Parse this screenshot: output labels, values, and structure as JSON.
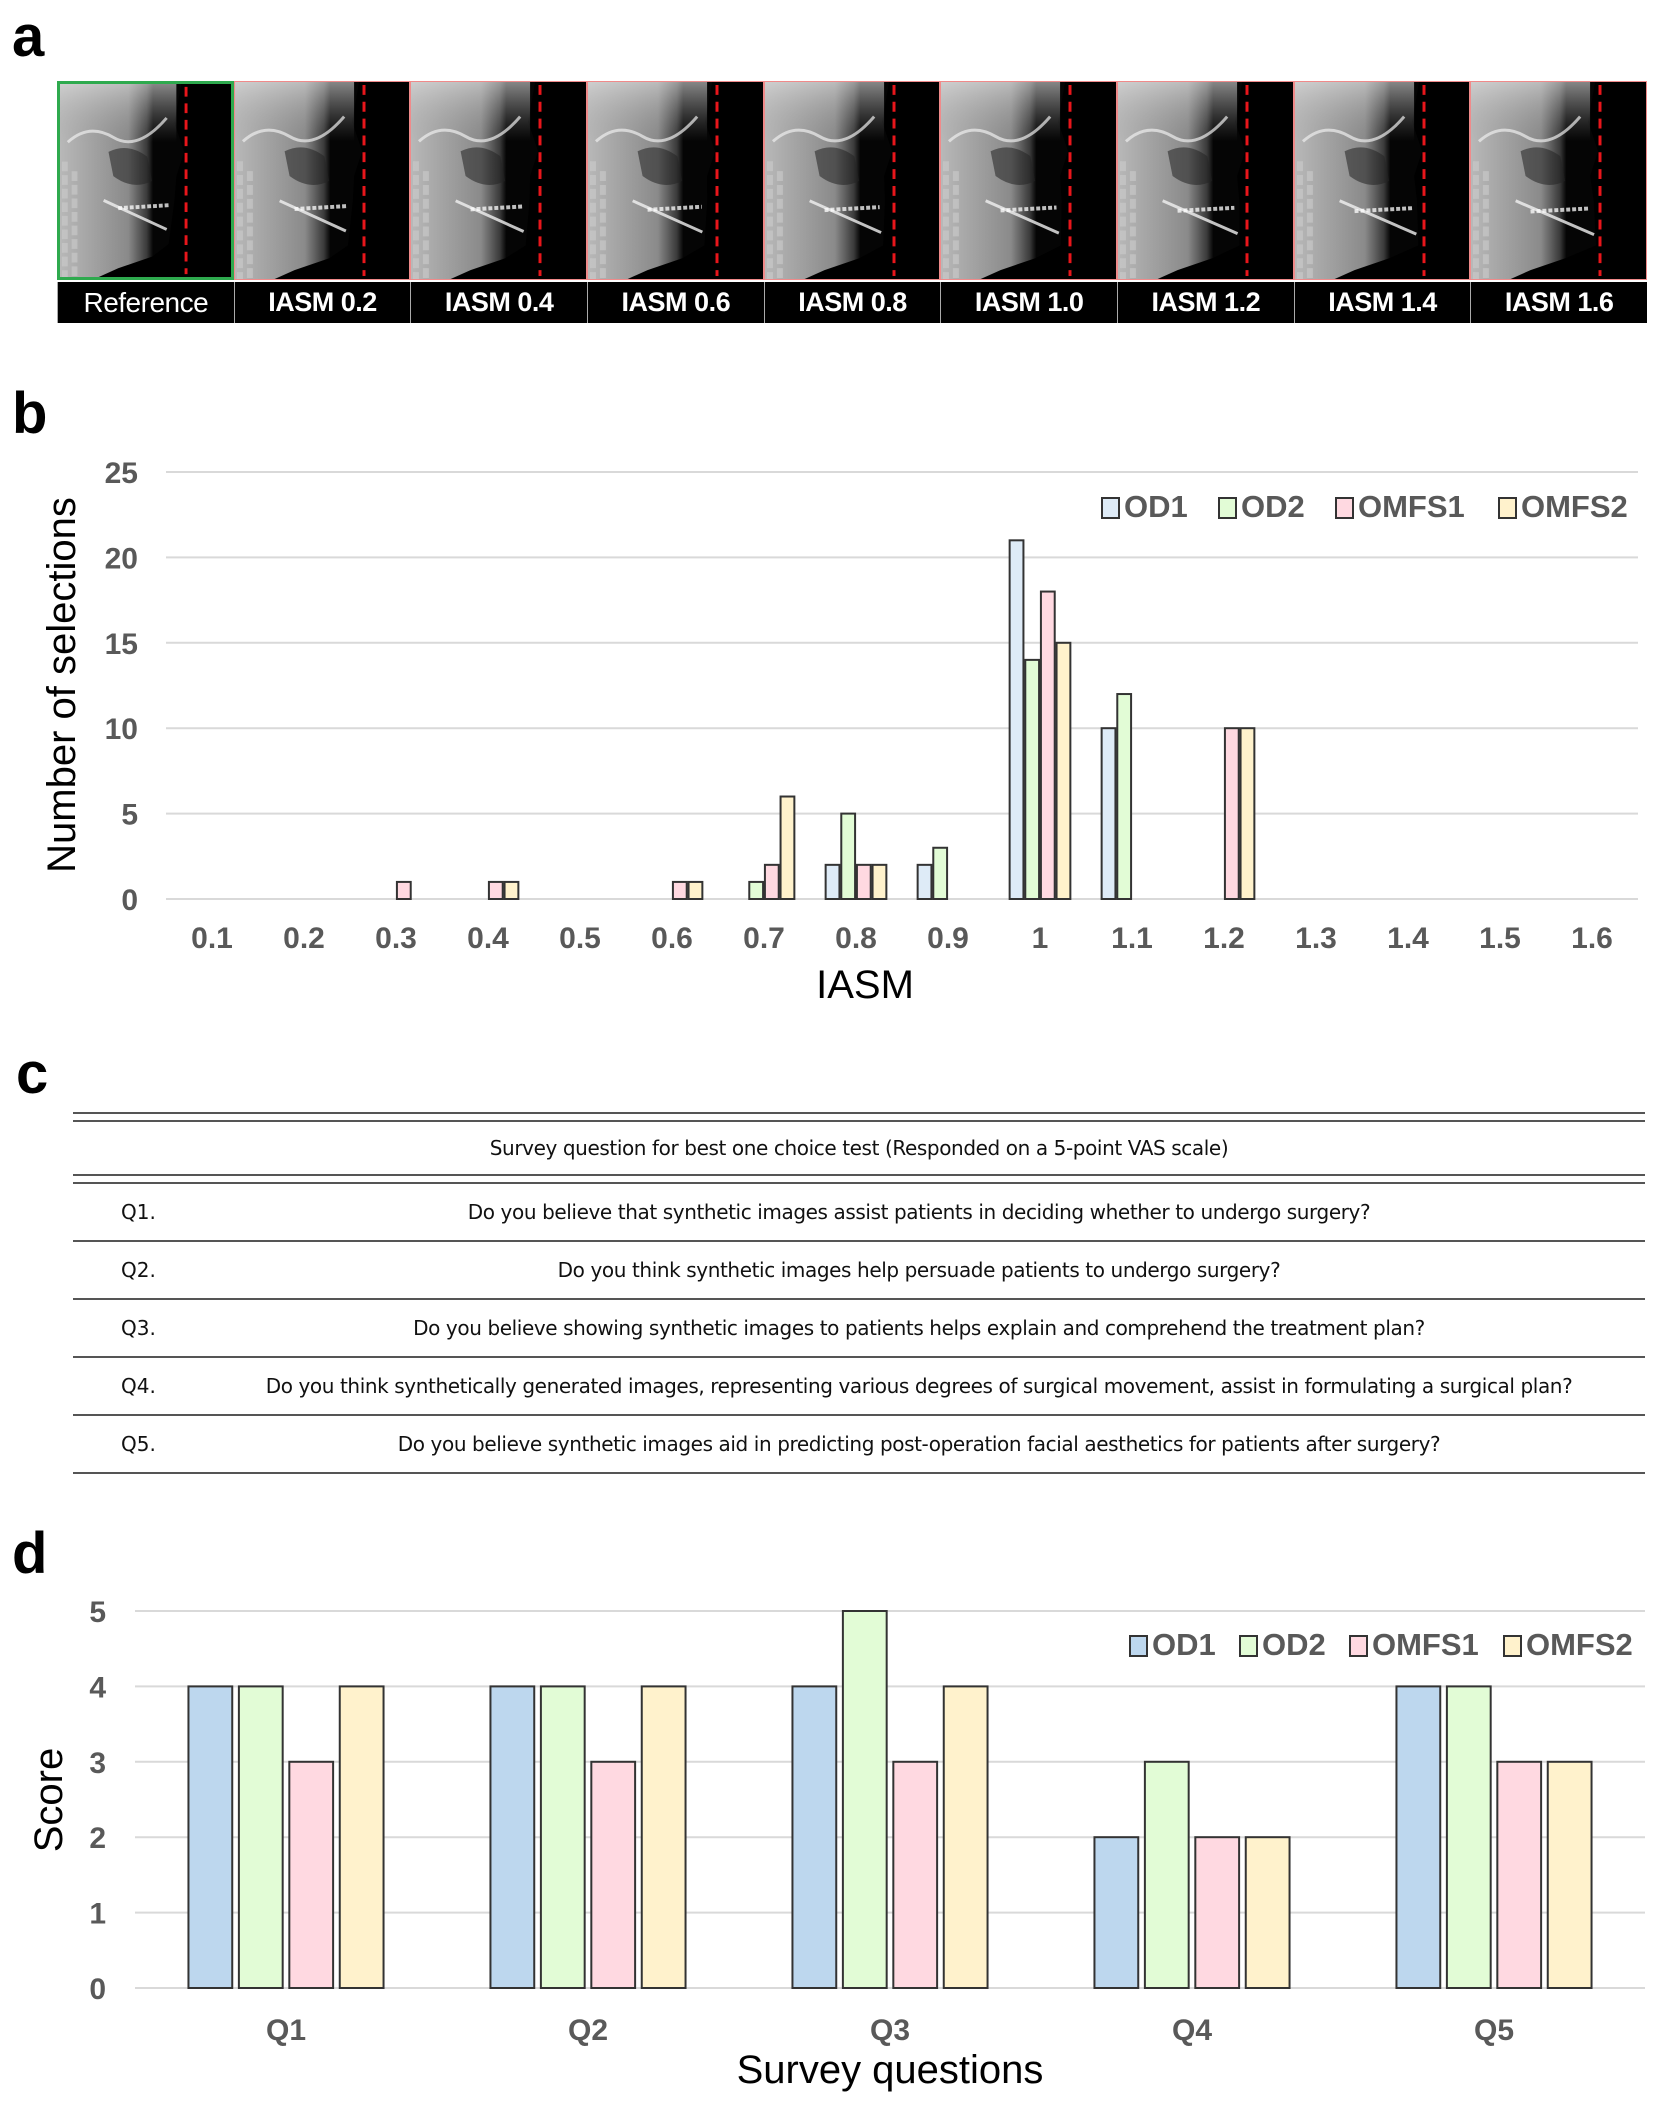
{
  "panels": {
    "a": {
      "letter": "a",
      "tiles": [
        {
          "label": "Reference",
          "kind": "reference"
        },
        {
          "label": "IASM 0.2",
          "kind": "synthetic"
        },
        {
          "label": "IASM 0.4",
          "kind": "synthetic"
        },
        {
          "label": "IASM 0.6",
          "kind": "synthetic"
        },
        {
          "label": "IASM 0.8",
          "kind": "synthetic"
        },
        {
          "label": "IASM 1.0",
          "kind": "synthetic"
        },
        {
          "label": "IASM 1.2",
          "kind": "synthetic"
        },
        {
          "label": "IASM 1.4",
          "kind": "synthetic"
        },
        {
          "label": "IASM 1.6",
          "kind": "synthetic"
        }
      ],
      "reference_border_color": "#2EAA4E",
      "synthetic_border_color": "#F08A8A",
      "guide_line_color": "#E8161B"
    },
    "b": {
      "letter": "b"
    },
    "c": {
      "letter": "c",
      "header": "Survey question for best one choice test (Responded on a 5-point VAS scale)",
      "rows": [
        {
          "id": "Q1.",
          "text": "Do you believe that synthetic images assist patients in deciding whether to undergo surgery?"
        },
        {
          "id": "Q2.",
          "text": "Do you think synthetic images help persuade patients to undergo surgery?"
        },
        {
          "id": "Q3.",
          "text": "Do you believe showing synthetic images to patients helps explain and comprehend the treatment plan?"
        },
        {
          "id": "Q4.",
          "text": "Do you think synthetically generated images, representing various degrees of surgical movement, assist in formulating a surgical plan?"
        },
        {
          "id": "Q5.",
          "text": "Do you believe synthetic images aid in predicting post-operation facial aesthetics for patients after surgery?"
        }
      ]
    },
    "d": {
      "letter": "d"
    }
  },
  "chart_data": [
    {
      "id": "b",
      "type": "bar",
      "title": "",
      "xlabel": "IASM",
      "ylabel": "Number of selections",
      "categories": [
        "0.1",
        "0.2",
        "0.3",
        "0.4",
        "0.5",
        "0.6",
        "0.7",
        "0.8",
        "0.9",
        "1",
        "1.1",
        "1.2",
        "1.3",
        "1.4",
        "1.5",
        "1.6"
      ],
      "ylim": [
        0,
        25
      ],
      "yticks": [
        0,
        5,
        10,
        15,
        20,
        25
      ],
      "grid": true,
      "legend_position": "top-right",
      "series": [
        {
          "name": "OD1",
          "color": "#DEEBF7",
          "values": [
            0,
            0,
            0,
            0,
            0,
            0,
            0,
            2,
            2,
            21,
            10,
            0,
            0,
            0,
            0,
            0
          ]
        },
        {
          "name": "OD2",
          "color": "#E2FCD6",
          "values": [
            0,
            0,
            0,
            0,
            0,
            0,
            1,
            5,
            3,
            14,
            12,
            0,
            0,
            0,
            0,
            0
          ]
        },
        {
          "name": "OMFS1",
          "color": "#FFD9E1",
          "values": [
            0,
            0,
            1,
            1,
            0,
            1,
            2,
            2,
            0,
            18,
            0,
            10,
            0,
            0,
            0,
            0
          ]
        },
        {
          "name": "OMFS2",
          "color": "#FFF2CC",
          "values": [
            0,
            0,
            0,
            1,
            0,
            1,
            6,
            2,
            0,
            15,
            0,
            10,
            0,
            0,
            0,
            0
          ]
        }
      ]
    },
    {
      "id": "d",
      "type": "bar",
      "title": "",
      "xlabel": "Survey questions",
      "ylabel": "Score",
      "categories": [
        "Q1",
        "Q2",
        "Q3",
        "Q4",
        "Q5"
      ],
      "ylim": [
        0,
        5
      ],
      "yticks": [
        0,
        1,
        2,
        3,
        4,
        5
      ],
      "grid": true,
      "legend_position": "top-right",
      "series": [
        {
          "name": "OD1",
          "color": "#BDD7EE",
          "values": [
            4,
            4,
            4,
            2,
            4
          ]
        },
        {
          "name": "OD2",
          "color": "#E2FCD6",
          "values": [
            4,
            4,
            5,
            3,
            4
          ]
        },
        {
          "name": "OMFS1",
          "color": "#FFD9E1",
          "values": [
            3,
            3,
            3,
            2,
            3
          ]
        },
        {
          "name": "OMFS2",
          "color": "#FFF2CC",
          "values": [
            4,
            4,
            4,
            2,
            3
          ]
        }
      ]
    }
  ]
}
